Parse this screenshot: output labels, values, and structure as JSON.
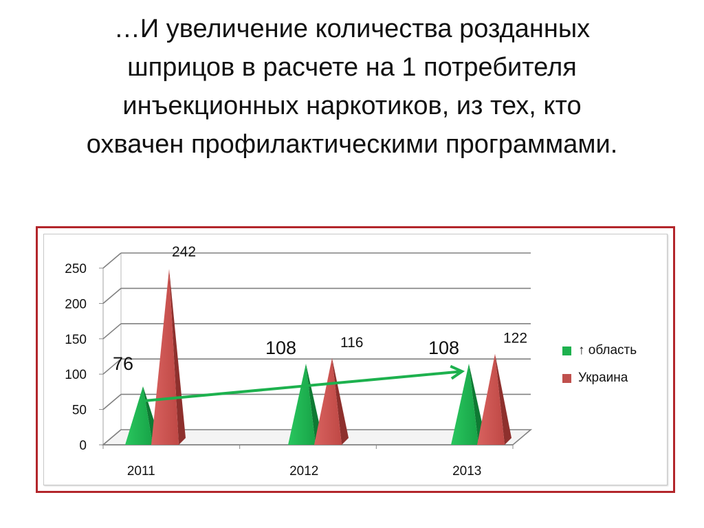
{
  "slide": {
    "title": "…И    увеличение количества розданных\nшприцов в расчете на 1 потребителя\nинъекционных наркотиков, из тех, кто\nохвачен профилактическими программами."
  },
  "colors": {
    "series_1": "#1db14e",
    "series_2": "#c0504d",
    "trend_arrow": "#1db14e",
    "frame": "#b3262b"
  },
  "chart_data": {
    "type": "bar",
    "subtype": "3d-cone",
    "categories": [
      "2011",
      "2012",
      "2013"
    ],
    "series": [
      {
        "name": "↑ область",
        "values": [
          76,
          108,
          108
        ],
        "color": "#1db14e"
      },
      {
        "name": "Украина",
        "values": [
          242,
          116,
          122
        ],
        "color": "#c0504d"
      }
    ],
    "ylim": [
      0,
      250
    ],
    "yticks": [
      "0",
      "50",
      "100",
      "150",
      "200",
      "250"
    ],
    "grid": true,
    "legend": "right",
    "annotation": {
      "type": "arrow",
      "from_category": "2011",
      "to_category": "2013"
    }
  }
}
